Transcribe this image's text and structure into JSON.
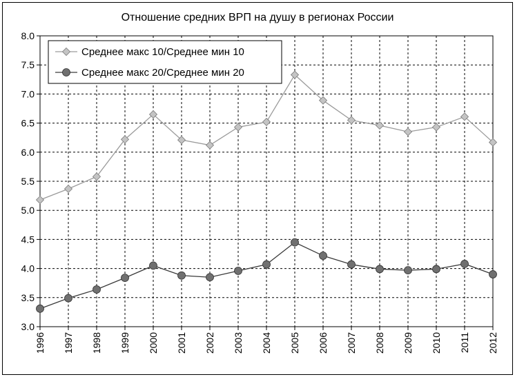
{
  "chart_data": {
    "type": "line",
    "title": "Отношение средних ВРП на душу в регионах России",
    "xlabel": "",
    "ylabel": "",
    "x": [
      "1996",
      "1997",
      "1998",
      "1999",
      "2000",
      "2001",
      "2002",
      "2003",
      "2004",
      "2005",
      "2006",
      "2007",
      "2008",
      "2009",
      "2010",
      "2011",
      "2012"
    ],
    "ylim": [
      3.0,
      8.0
    ],
    "yticks": [
      "3.0",
      "3.5",
      "4.0",
      "4.5",
      "5.0",
      "5.5",
      "6.0",
      "6.5",
      "7.0",
      "7.5",
      "8.0"
    ],
    "grid": true,
    "legend_position": "top-left",
    "series": [
      {
        "name": "Среднее макс 10/Среднее мин 10",
        "marker": "diamond",
        "line_color": "#9a9a9a",
        "marker_fill": "#c4c4c4",
        "values": [
          5.18,
          5.37,
          5.58,
          6.22,
          6.65,
          6.21,
          6.12,
          6.43,
          6.52,
          7.33,
          6.89,
          6.55,
          6.46,
          6.35,
          6.43,
          6.61,
          6.17
        ]
      },
      {
        "name": "Среднее макс 20/Среднее мин 20",
        "marker": "circle",
        "line_color": "#3a3a3a",
        "marker_fill": "#707070",
        "values": [
          3.31,
          3.49,
          3.64,
          3.84,
          4.05,
          3.88,
          3.85,
          3.96,
          4.07,
          4.45,
          4.22,
          4.07,
          3.99,
          3.97,
          3.99,
          4.08,
          3.9
        ]
      }
    ]
  }
}
